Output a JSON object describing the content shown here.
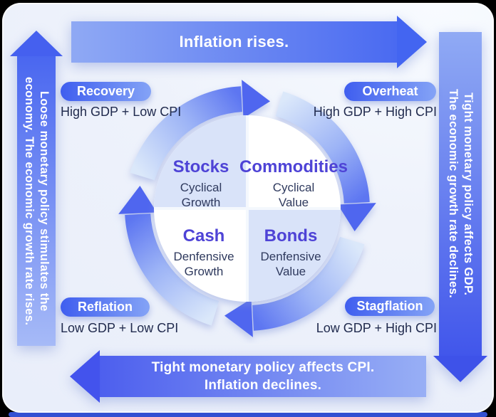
{
  "colors": {
    "accent_strong": "#4a66f0",
    "accent_light": "#9db4f6",
    "badge_gradient_start": "#3f5eef",
    "badge_gradient_end": "#84a3f6",
    "quadrant_title": "#4e43d6",
    "quadrant_highlight_bg": "#d9e3f9",
    "condition_text": "#212b4e",
    "card_bg": "#eef2fb",
    "bottom_edge": "#3350d2"
  },
  "arrows": {
    "top": {
      "label": "Inflation rises."
    },
    "bottom": {
      "lines": [
        "Tight monetary policy affects CPI.",
        "Inflation declines."
      ]
    },
    "left": {
      "lines": [
        "Loose monetary policy stimulates the",
        "economy. The economic growth rate rises."
      ]
    },
    "right": {
      "lines": [
        "Tight monetary policy affects GDP.",
        "The economic growth rate declines."
      ]
    }
  },
  "phases": [
    {
      "name": "Recovery",
      "condition": "High GDP + Low CPI",
      "position": "top-left"
    },
    {
      "name": "Overheat",
      "condition": "High GDP + High CPI",
      "position": "top-right"
    },
    {
      "name": "Reflation",
      "condition": "Low GDP + Low CPI",
      "position": "bottom-left"
    },
    {
      "name": "Stagflation",
      "condition": "Low GDP + High CPI",
      "position": "bottom-right"
    }
  ],
  "quadrants": [
    {
      "title": "Stocks",
      "style": "Cyclical Growth",
      "position": "top-left"
    },
    {
      "title": "Commodities",
      "style": "Cyclical Value",
      "position": "top-right"
    },
    {
      "title": "Cash",
      "style": "Denfensive Growth",
      "position": "bottom-left"
    },
    {
      "title": "Bonds",
      "style": "Denfensive Value",
      "position": "bottom-right"
    }
  ]
}
